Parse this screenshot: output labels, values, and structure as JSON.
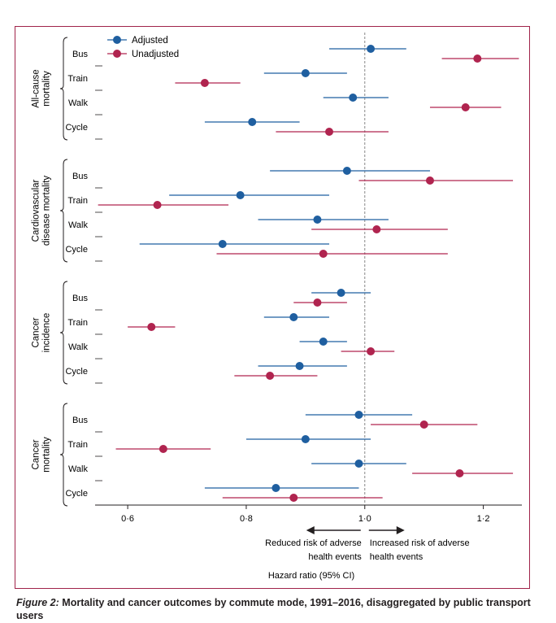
{
  "figure": {
    "label": "Figure 2:",
    "caption": "Mortality and cancer outcomes by commute mode, 1991–2016, disaggregated by public transport users"
  },
  "colors": {
    "adjusted": "#1f5fa0",
    "unadjusted": "#b0244f",
    "frame": "#a0234a",
    "reference": "#888888"
  },
  "chart_data": {
    "type": "forest",
    "xlabel": "Hazard ratio (95% CI)",
    "xlim": [
      0.545,
      1.265
    ],
    "xticks": [
      {
        "value": 0.6,
        "label": "0·6"
      },
      {
        "value": 0.8,
        "label": "0·8"
      },
      {
        "value": 1.0,
        "label": "1·0"
      },
      {
        "value": 1.2,
        "label": "1·2"
      }
    ],
    "reference_line": 1.0,
    "legend": {
      "position": "top-left",
      "adjusted": "Adjusted",
      "unadjusted": "Unadjusted"
    },
    "annotations": {
      "left": [
        "Reduced risk of adverse",
        "health events"
      ],
      "right": [
        "Increased risk of adverse",
        "health events"
      ]
    },
    "groups": [
      {
        "label": [
          "All-cause",
          "mortality"
        ],
        "rows": [
          {
            "mode": "Bus",
            "adjusted": {
              "hr": 1.01,
              "lo": 0.94,
              "hi": 1.07
            },
            "unadjusted": {
              "hr": 1.19,
              "lo": 1.13,
              "hi": 1.26
            }
          },
          {
            "mode": "Train",
            "adjusted": {
              "hr": 0.9,
              "lo": 0.83,
              "hi": 0.97
            },
            "unadjusted": {
              "hr": 0.73,
              "lo": 0.68,
              "hi": 0.79
            }
          },
          {
            "mode": "Walk",
            "adjusted": {
              "hr": 0.98,
              "lo": 0.93,
              "hi": 1.04
            },
            "unadjusted": {
              "hr": 1.17,
              "lo": 1.11,
              "hi": 1.23
            }
          },
          {
            "mode": "Cycle",
            "adjusted": {
              "hr": 0.81,
              "lo": 0.73,
              "hi": 0.89
            },
            "unadjusted": {
              "hr": 0.94,
              "lo": 0.85,
              "hi": 1.04
            }
          }
        ]
      },
      {
        "label": [
          "Cardiovascular",
          "disease mortality"
        ],
        "rows": [
          {
            "mode": "Bus",
            "adjusted": {
              "hr": 0.97,
              "lo": 0.84,
              "hi": 1.11
            },
            "unadjusted": {
              "hr": 1.11,
              "lo": 0.99,
              "hi": 1.25
            }
          },
          {
            "mode": "Train",
            "adjusted": {
              "hr": 0.79,
              "lo": 0.67,
              "hi": 0.94
            },
            "unadjusted": {
              "hr": 0.65,
              "lo": 0.55,
              "hi": 0.77
            }
          },
          {
            "mode": "Walk",
            "adjusted": {
              "hr": 0.92,
              "lo": 0.82,
              "hi": 1.04
            },
            "unadjusted": {
              "hr": 1.02,
              "lo": 0.91,
              "hi": 1.14
            }
          },
          {
            "mode": "Cycle",
            "adjusted": {
              "hr": 0.76,
              "lo": 0.62,
              "hi": 0.94
            },
            "unadjusted": {
              "hr": 0.93,
              "lo": 0.75,
              "hi": 1.14
            }
          }
        ]
      },
      {
        "label": [
          "Cancer",
          "incidence"
        ],
        "rows": [
          {
            "mode": "Bus",
            "adjusted": {
              "hr": 0.96,
              "lo": 0.91,
              "hi": 1.01
            },
            "unadjusted": {
              "hr": 0.92,
              "lo": 0.88,
              "hi": 0.97
            }
          },
          {
            "mode": "Train",
            "adjusted": {
              "hr": 0.88,
              "lo": 0.83,
              "hi": 0.94
            },
            "unadjusted": {
              "hr": 0.64,
              "lo": 0.6,
              "hi": 0.68
            }
          },
          {
            "mode": "Walk",
            "adjusted": {
              "hr": 0.93,
              "lo": 0.89,
              "hi": 0.97
            },
            "unadjusted": {
              "hr": 1.01,
              "lo": 0.96,
              "hi": 1.05
            }
          },
          {
            "mode": "Cycle",
            "adjusted": {
              "hr": 0.89,
              "lo": 0.82,
              "hi": 0.97
            },
            "unadjusted": {
              "hr": 0.84,
              "lo": 0.78,
              "hi": 0.92
            }
          }
        ]
      },
      {
        "label": [
          "Cancer",
          "mortality"
        ],
        "rows": [
          {
            "mode": "Bus",
            "adjusted": {
              "hr": 0.99,
              "lo": 0.9,
              "hi": 1.08
            },
            "unadjusted": {
              "hr": 1.1,
              "lo": 1.01,
              "hi": 1.19
            }
          },
          {
            "mode": "Train",
            "adjusted": {
              "hr": 0.9,
              "lo": 0.8,
              "hi": 1.01
            },
            "unadjusted": {
              "hr": 0.66,
              "lo": 0.58,
              "hi": 0.74
            }
          },
          {
            "mode": "Walk",
            "adjusted": {
              "hr": 0.99,
              "lo": 0.91,
              "hi": 1.07
            },
            "unadjusted": {
              "hr": 1.16,
              "lo": 1.08,
              "hi": 1.25
            }
          },
          {
            "mode": "Cycle",
            "adjusted": {
              "hr": 0.85,
              "lo": 0.73,
              "hi": 0.99
            },
            "unadjusted": {
              "hr": 0.88,
              "lo": 0.76,
              "hi": 1.03
            }
          }
        ]
      }
    ]
  }
}
